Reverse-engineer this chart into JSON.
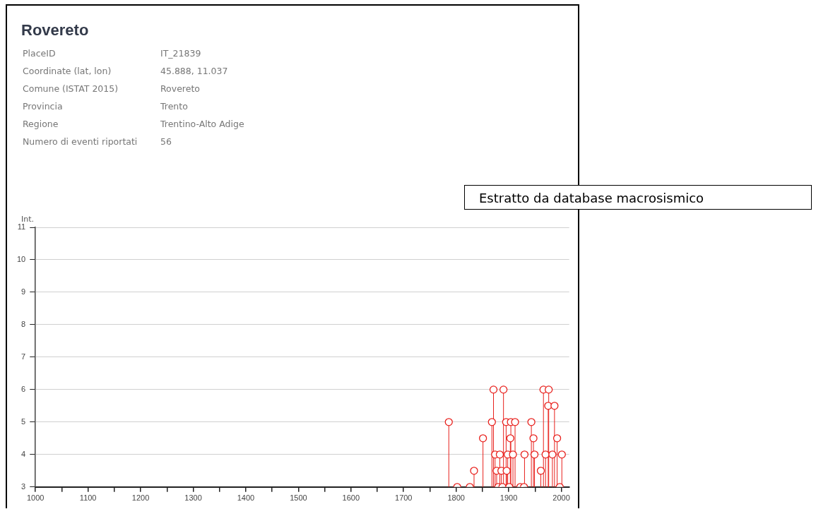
{
  "chart_data": {
    "type": "lollipop",
    "title": "Rovereto",
    "annotations": [
      "PlaceID",
      "IT_21839",
      "Coordinate (lat, lon)",
      "45.888, 11.037",
      "Comune (ISTAT 2015)",
      "Rovereto",
      "Provincia",
      "Trento",
      "Regione",
      "Trentino-Alto Adige",
      "Numero di eventi riportati",
      "56",
      "Estratto da database macrosismico"
    ],
    "ylabel": "Int.",
    "series": [
      {
        "color": "#e8201c",
        "x": [
          1786,
          1802,
          1826,
          1834,
          1851,
          1868,
          1871,
          1874,
          1877,
          1880,
          1883,
          1886,
          1888,
          1890,
          1895,
          1896,
          1898,
          1901,
          1903,
          1904,
          1908,
          1912,
          1922,
          1929,
          1930,
          1943,
          1947,
          1949,
          1961,
          1966,
          1970,
          1975,
          1976,
          1983,
          1987,
          1992,
          1997,
          2001
        ],
        "values": [
          5,
          3,
          3,
          3.5,
          4.5,
          5,
          6,
          4,
          3.5,
          3,
          4,
          3.5,
          3,
          6,
          5,
          3.5,
          4,
          3,
          4.5,
          5,
          4,
          5,
          3,
          3,
          4,
          5,
          4.5,
          4,
          3.5,
          6,
          4,
          5.5,
          6,
          4,
          5.5,
          4.5,
          3,
          4
        ]
      }
    ],
    "xlim": [
      1000,
      2015
    ],
    "ylim": [
      3,
      11
    ],
    "xticks": [
      1000,
      {
        "value": 1050,
        "label": null
      },
      1100,
      {
        "value": 1150,
        "label": null
      },
      1200,
      {
        "value": 1250,
        "label": null
      },
      1300,
      {
        "value": 1350,
        "label": null
      },
      1400,
      {
        "value": 1450,
        "label": null
      },
      1500,
      {
        "value": 1550,
        "label": null
      },
      1600,
      {
        "value": 1650,
        "label": null
      },
      1700,
      {
        "value": 1750,
        "label": null
      },
      1800,
      {
        "value": 1850,
        "label": null
      },
      1900,
      {
        "value": 1950,
        "label": null
      },
      2000
    ],
    "yticks": [
      3,
      4,
      5,
      6,
      7,
      8,
      9,
      10,
      11
    ],
    "grid": "y",
    "marker": "circle",
    "legend": false
  }
}
